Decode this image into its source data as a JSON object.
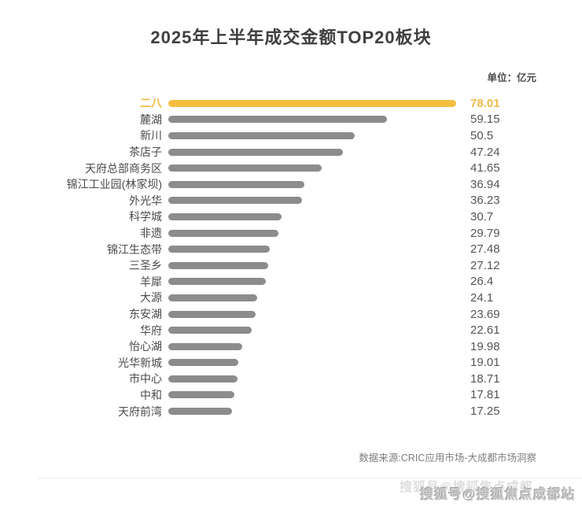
{
  "page": {
    "title": "2025年上半年成交金额TOP20板块",
    "unit_label": "单位：亿元",
    "source": "数据来源:CRIC应用市场-大成都市场洞察",
    "watermark": "搜狐号@搜狐焦点成都站"
  },
  "colors": {
    "highlight": "#F5BE41",
    "highlight_text": "#EFBB45",
    "bar_gray": "#8C8C8C",
    "label_text": "#4A4A4A",
    "value_text": "#555555",
    "source_text": "#7E7E7E"
  },
  "chart_data": {
    "type": "bar",
    "orientation": "horizontal",
    "title": "2025年上半年成交金额TOP20板块",
    "unit": "亿元",
    "categories": [
      "二八",
      "麓湖",
      "新川",
      "茶店子",
      "天府总部商务区",
      "锦江工业园(林家坝)",
      "外光华",
      "科学城",
      "非遗",
      "锦江生态带",
      "三圣乡",
      "羊犀",
      "大源",
      "东安湖",
      "华府",
      "怡心湖",
      "光华新城",
      "市中心",
      "中和",
      "天府前湾"
    ],
    "values": [
      78.01,
      59.15,
      50.5,
      47.24,
      41.65,
      36.94,
      36.23,
      30.7,
      29.79,
      27.48,
      27.12,
      26.4,
      24.1,
      23.69,
      22.61,
      19.98,
      19.01,
      18.71,
      17.81,
      17.25
    ],
    "highlight_index": 0,
    "xlim": [
      0,
      80
    ],
    "value_labels_shown": true,
    "grid": false,
    "legend": false
  }
}
